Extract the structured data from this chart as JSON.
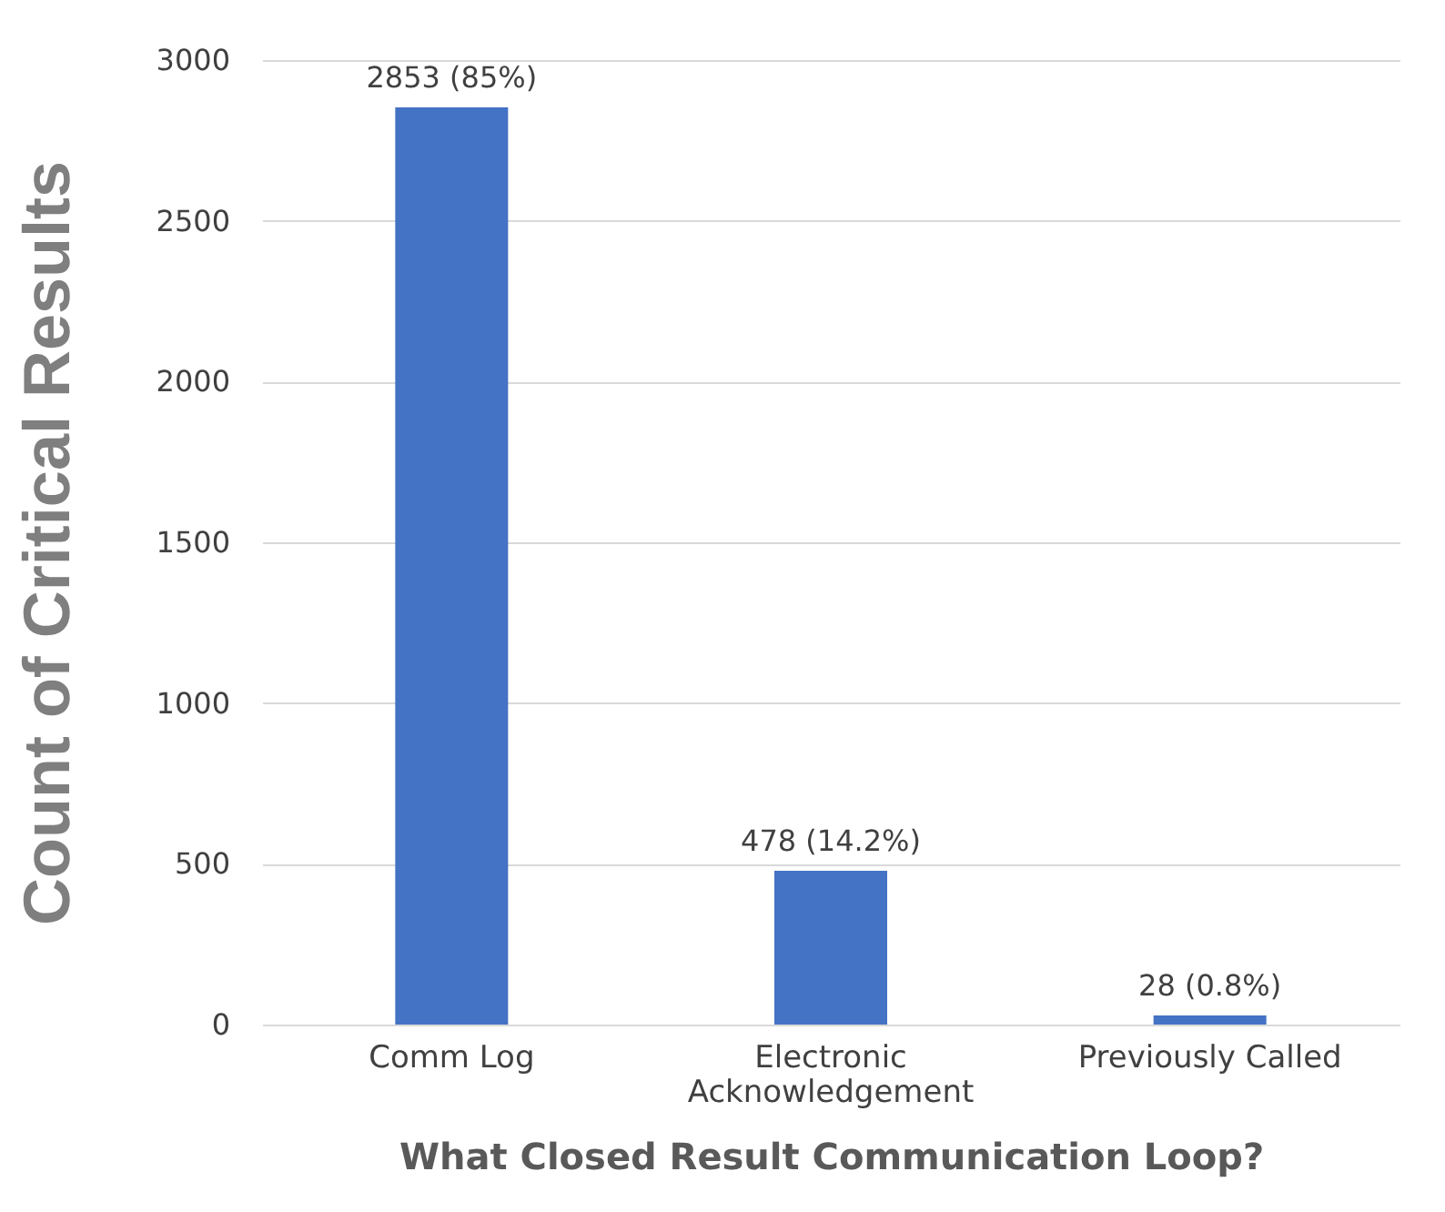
{
  "chart_data": {
    "type": "bar",
    "xlabel": "What Closed Result Communication Loop?",
    "ylabel": "Count of Critical Results",
    "categories": [
      "Comm Log",
      "Electronic Acknowledgement",
      "Previously Called"
    ],
    "values": [
      2853,
      478,
      28
    ],
    "color": "#4472c4",
    "value_labels": [
      "2853 (85%)",
      "478  (14.2%)",
      "28 (0.8%)"
    ],
    "ylim": [
      0,
      3000
    ],
    "yticks": [
      0,
      500,
      1000,
      1500,
      2000,
      2500,
      3000
    ],
    "grid": "y"
  }
}
